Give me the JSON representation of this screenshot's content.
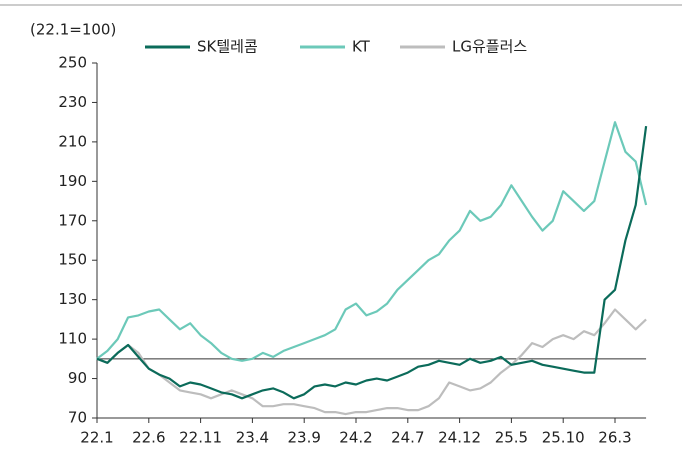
{
  "chart_data": {
    "type": "line",
    "y_label": "(22.1=100)",
    "categories": [
      "22.1",
      null,
      null,
      null,
      null,
      "22.6",
      null,
      null,
      null,
      null,
      "22.11",
      null,
      null,
      null,
      null,
      "23.4",
      null,
      null,
      null,
      null,
      "23.9",
      null,
      null,
      null,
      null,
      "24.2",
      null,
      null,
      null,
      null,
      "24.7",
      null,
      null,
      null,
      null,
      "24.12",
      null,
      null,
      null,
      null,
      "25.5",
      null,
      null,
      null,
      null,
      "25.10",
      null,
      null,
      null,
      null,
      "26.3",
      null,
      null,
      null
    ],
    "series": [
      {
        "name": "SK텔레콤",
        "color": "#0b6b5a",
        "values": [
          100,
          98,
          103,
          107,
          101,
          95,
          92,
          90,
          86,
          88,
          87,
          85,
          83,
          82,
          80,
          82,
          84,
          85,
          83,
          80,
          82,
          86,
          87,
          86,
          88,
          87,
          89,
          90,
          89,
          91,
          93,
          96,
          97,
          99,
          98,
          97,
          100,
          98,
          99,
          101,
          97,
          98,
          99,
          97,
          96,
          95,
          94,
          93,
          93,
          130,
          135,
          160,
          178,
          218
        ]
      },
      {
        "name": "KT",
        "color": "#6cc9b9",
        "values": [
          100,
          104,
          110,
          121,
          122,
          124,
          125,
          120,
          115,
          118,
          112,
          108,
          103,
          100,
          99,
          100,
          103,
          101,
          104,
          106,
          108,
          110,
          112,
          115,
          125,
          128,
          122,
          124,
          128,
          135,
          140,
          145,
          150,
          153,
          160,
          165,
          175,
          170,
          172,
          178,
          188,
          180,
          172,
          165,
          170,
          185,
          180,
          175,
          180,
          200,
          220,
          205,
          200,
          178
        ]
      },
      {
        "name": "LG유플러스",
        "color": "#bdbdbd",
        "values": [
          100,
          98,
          103,
          107,
          103,
          95,
          92,
          88,
          84,
          83,
          82,
          80,
          82,
          84,
          82,
          80,
          76,
          76,
          77,
          77,
          76,
          75,
          73,
          73,
          72,
          73,
          73,
          74,
          75,
          75,
          74,
          74,
          76,
          80,
          88,
          86,
          84,
          85,
          88,
          93,
          97,
          102,
          108,
          106,
          110,
          112,
          110,
          114,
          112,
          118,
          125,
          120,
          115,
          120
        ]
      }
    ],
    "reference_line": 100,
    "ylim": [
      70,
      250
    ],
    "yticks": [
      70,
      90,
      110,
      130,
      150,
      170,
      190,
      210,
      230,
      250
    ]
  }
}
